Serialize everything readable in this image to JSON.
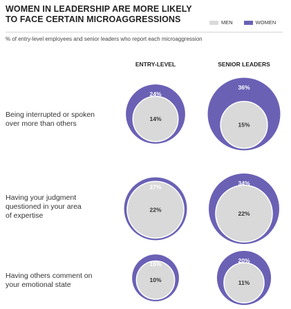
{
  "header": {
    "title_line1": "WOMEN IN LEADERSHIP ARE MORE LIKELY",
    "title_line2": "TO FACE CERTAIN MICROAGGRESSIONS",
    "subtitle": "% of entry-level employees and senior leaders who report each microaggression"
  },
  "legend": {
    "men_label": "MEN",
    "women_label": "WOMEN",
    "men_color": "#d9d9d9",
    "women_color": "#6a61b5"
  },
  "chart_data": {
    "type": "bubble",
    "columns": [
      "ENTRY-LEVEL",
      "SENIOR LEADERS"
    ],
    "rows": [
      {
        "label": "Being interrupted or spoken\nover more than others",
        "values": [
          {
            "women": 24,
            "men": 14,
            "women_label": "24%",
            "men_label": "14%"
          },
          {
            "women": 36,
            "men": 15,
            "women_label": "36%",
            "men_label": "15%"
          }
        ]
      },
      {
        "label": "Having your judgment\nquestioned in your area\nof expertise",
        "values": [
          {
            "women": 27,
            "men": 22,
            "women_label": "27%",
            "men_label": "22%"
          },
          {
            "women": 34,
            "men": 22,
            "women_label": "34%",
            "men_label": "22%"
          }
        ]
      },
      {
        "label": "Having others comment on\nyour emotional state",
        "values": [
          {
            "women": 15,
            "men": 10,
            "women_label": "15%",
            "men_label": "10%"
          },
          {
            "women": 20,
            "men": 11,
            "women_label": "20%",
            "men_label": "11%"
          }
        ]
      }
    ]
  }
}
